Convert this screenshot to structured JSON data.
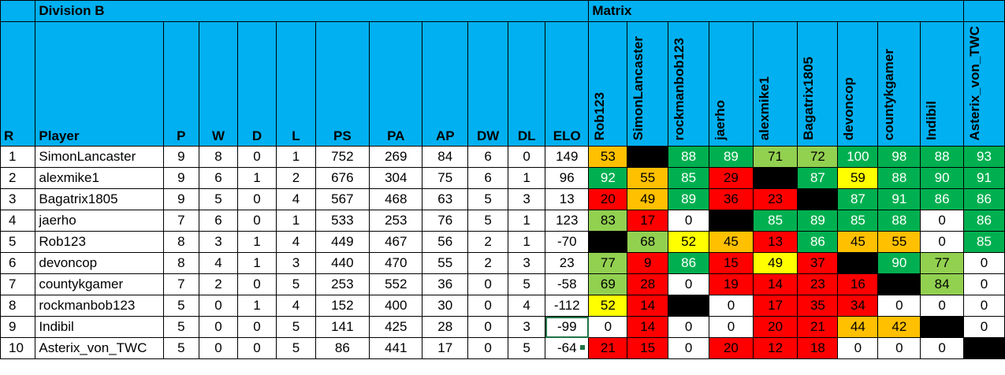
{
  "title": "Division B",
  "matrix_title": "Matrix",
  "headers": [
    "R",
    "Player",
    "P",
    "W",
    "D",
    "L",
    "PS",
    "PA",
    "AP",
    "DW",
    "DL",
    "ELO"
  ],
  "matrix_players": [
    "Rob123",
    "SimonLancaster",
    "rockmanbob123",
    "jaerho",
    "alexmike1",
    "Bagatrix1805",
    "devoncop",
    "countykgamer",
    "Indibil",
    "Asterix_von_TWC"
  ],
  "colors": {
    "header": "#00b0f0",
    "green": "#00b050",
    "lightgreen": "#92d050",
    "yellow": "#ffff00",
    "orange": "#ffc000",
    "red": "#ff0000",
    "black": "#000000",
    "white": "#ffffff"
  },
  "rows": [
    {
      "r": "1",
      "player": "SimonLancaster",
      "p": "9",
      "w": "8",
      "d": "0",
      "l": "1",
      "ps": "752",
      "pa": "269",
      "ap": "84",
      "dw": "6",
      "dl": "0",
      "elo": "149",
      "matrix": [
        {
          "v": "53",
          "c": "orange"
        },
        {
          "v": "",
          "c": "black"
        },
        {
          "v": "88",
          "c": "green"
        },
        {
          "v": "89",
          "c": "green"
        },
        {
          "v": "71",
          "c": "lightgreen"
        },
        {
          "v": "72",
          "c": "lightgreen"
        },
        {
          "v": "100",
          "c": "green"
        },
        {
          "v": "98",
          "c": "green"
        },
        {
          "v": "88",
          "c": "green"
        },
        {
          "v": "93",
          "c": "green"
        }
      ]
    },
    {
      "r": "2",
      "player": "alexmike1",
      "p": "9",
      "w": "6",
      "d": "1",
      "l": "2",
      "ps": "676",
      "pa": "304",
      "ap": "75",
      "dw": "6",
      "dl": "1",
      "elo": "96",
      "matrix": [
        {
          "v": "92",
          "c": "green"
        },
        {
          "v": "55",
          "c": "orange"
        },
        {
          "v": "85",
          "c": "green"
        },
        {
          "v": "29",
          "c": "red"
        },
        {
          "v": "",
          "c": "black"
        },
        {
          "v": "87",
          "c": "green"
        },
        {
          "v": "59",
          "c": "yellow"
        },
        {
          "v": "88",
          "c": "green"
        },
        {
          "v": "90",
          "c": "green"
        },
        {
          "v": "91",
          "c": "green"
        }
      ]
    },
    {
      "r": "3",
      "player": "Bagatrix1805",
      "p": "9",
      "w": "5",
      "d": "0",
      "l": "4",
      "ps": "567",
      "pa": "468",
      "ap": "63",
      "dw": "5",
      "dl": "3",
      "elo": "13",
      "matrix": [
        {
          "v": "20",
          "c": "red"
        },
        {
          "v": "49",
          "c": "orange"
        },
        {
          "v": "89",
          "c": "green"
        },
        {
          "v": "36",
          "c": "red"
        },
        {
          "v": "23",
          "c": "red"
        },
        {
          "v": "",
          "c": "black"
        },
        {
          "v": "87",
          "c": "green"
        },
        {
          "v": "91",
          "c": "green"
        },
        {
          "v": "86",
          "c": "green"
        },
        {
          "v": "86",
          "c": "green"
        }
      ]
    },
    {
      "r": "4",
      "player": "jaerho",
      "p": "7",
      "w": "6",
      "d": "0",
      "l": "1",
      "ps": "533",
      "pa": "253",
      "ap": "76",
      "dw": "5",
      "dl": "1",
      "elo": "123",
      "matrix": [
        {
          "v": "83",
          "c": "lightgreen"
        },
        {
          "v": "17",
          "c": "red"
        },
        {
          "v": "0",
          "c": "white"
        },
        {
          "v": "",
          "c": "black"
        },
        {
          "v": "85",
          "c": "green"
        },
        {
          "v": "89",
          "c": "green"
        },
        {
          "v": "85",
          "c": "green"
        },
        {
          "v": "88",
          "c": "green"
        },
        {
          "v": "0",
          "c": "white"
        },
        {
          "v": "86",
          "c": "green"
        }
      ]
    },
    {
      "r": "5",
      "player": "Rob123",
      "p": "8",
      "w": "3",
      "d": "1",
      "l": "4",
      "ps": "449",
      "pa": "467",
      "ap": "56",
      "dw": "2",
      "dl": "1",
      "elo": "-70",
      "matrix": [
        {
          "v": "",
          "c": "black"
        },
        {
          "v": "68",
          "c": "lightgreen"
        },
        {
          "v": "52",
          "c": "yellow"
        },
        {
          "v": "45",
          "c": "orange"
        },
        {
          "v": "13",
          "c": "red"
        },
        {
          "v": "86",
          "c": "green"
        },
        {
          "v": "45",
          "c": "orange"
        },
        {
          "v": "55",
          "c": "orange"
        },
        {
          "v": "0",
          "c": "white"
        },
        {
          "v": "85",
          "c": "green"
        }
      ]
    },
    {
      "r": "6",
      "player": "devoncop",
      "p": "8",
      "w": "4",
      "d": "1",
      "l": "3",
      "ps": "440",
      "pa": "470",
      "ap": "55",
      "dw": "2",
      "dl": "3",
      "elo": "23",
      "matrix": [
        {
          "v": "77",
          "c": "lightgreen"
        },
        {
          "v": "9",
          "c": "red"
        },
        {
          "v": "86",
          "c": "green"
        },
        {
          "v": "15",
          "c": "red"
        },
        {
          "v": "49",
          "c": "yellow"
        },
        {
          "v": "37",
          "c": "red"
        },
        {
          "v": "",
          "c": "black"
        },
        {
          "v": "90",
          "c": "green"
        },
        {
          "v": "77",
          "c": "lightgreen"
        },
        {
          "v": "0",
          "c": "white"
        }
      ]
    },
    {
      "r": "7",
      "player": "countykgamer",
      "p": "7",
      "w": "2",
      "d": "0",
      "l": "5",
      "ps": "253",
      "pa": "552",
      "ap": "36",
      "dw": "0",
      "dl": "5",
      "elo": "-58",
      "matrix": [
        {
          "v": "69",
          "c": "lightgreen"
        },
        {
          "v": "28",
          "c": "red"
        },
        {
          "v": "0",
          "c": "white"
        },
        {
          "v": "19",
          "c": "red"
        },
        {
          "v": "14",
          "c": "red"
        },
        {
          "v": "23",
          "c": "red"
        },
        {
          "v": "16",
          "c": "red"
        },
        {
          "v": "",
          "c": "black"
        },
        {
          "v": "84",
          "c": "lightgreen"
        },
        {
          "v": "0",
          "c": "white"
        }
      ]
    },
    {
      "r": "8",
      "player": "rockmanbob123",
      "p": "5",
      "w": "0",
      "d": "1",
      "l": "4",
      "ps": "152",
      "pa": "400",
      "ap": "30",
      "dw": "0",
      "dl": "4",
      "elo": "-112",
      "matrix": [
        {
          "v": "52",
          "c": "yellow"
        },
        {
          "v": "14",
          "c": "red"
        },
        {
          "v": "",
          "c": "black"
        },
        {
          "v": "0",
          "c": "white"
        },
        {
          "v": "17",
          "c": "red"
        },
        {
          "v": "35",
          "c": "red"
        },
        {
          "v": "34",
          "c": "red"
        },
        {
          "v": "0",
          "c": "white"
        },
        {
          "v": "0",
          "c": "white"
        },
        {
          "v": "0",
          "c": "white"
        }
      ]
    },
    {
      "r": "9",
      "player": "Indibil",
      "p": "5",
      "w": "0",
      "d": "0",
      "l": "5",
      "ps": "141",
      "pa": "425",
      "ap": "28",
      "dw": "0",
      "dl": "3",
      "elo": "-99",
      "matrix": [
        {
          "v": "0",
          "c": "white"
        },
        {
          "v": "14",
          "c": "red"
        },
        {
          "v": "0",
          "c": "white"
        },
        {
          "v": "0",
          "c": "white"
        },
        {
          "v": "20",
          "c": "red"
        },
        {
          "v": "21",
          "c": "red"
        },
        {
          "v": "44",
          "c": "orange"
        },
        {
          "v": "42",
          "c": "orange"
        },
        {
          "v": "",
          "c": "black"
        },
        {
          "v": "0",
          "c": "white"
        }
      ]
    },
    {
      "r": "10",
      "player": "Asterix_von_TWC",
      "p": "5",
      "w": "0",
      "d": "0",
      "l": "5",
      "ps": "86",
      "pa": "441",
      "ap": "17",
      "dw": "0",
      "dl": "5",
      "elo": "-64",
      "matrix": [
        {
          "v": "21",
          "c": "red"
        },
        {
          "v": "15",
          "c": "red"
        },
        {
          "v": "0",
          "c": "white"
        },
        {
          "v": "20",
          "c": "red"
        },
        {
          "v": "12",
          "c": "red"
        },
        {
          "v": "18",
          "c": "red"
        },
        {
          "v": "0",
          "c": "white"
        },
        {
          "v": "0",
          "c": "white"
        },
        {
          "v": "0",
          "c": "white"
        },
        {
          "v": "",
          "c": "black"
        }
      ]
    }
  ]
}
